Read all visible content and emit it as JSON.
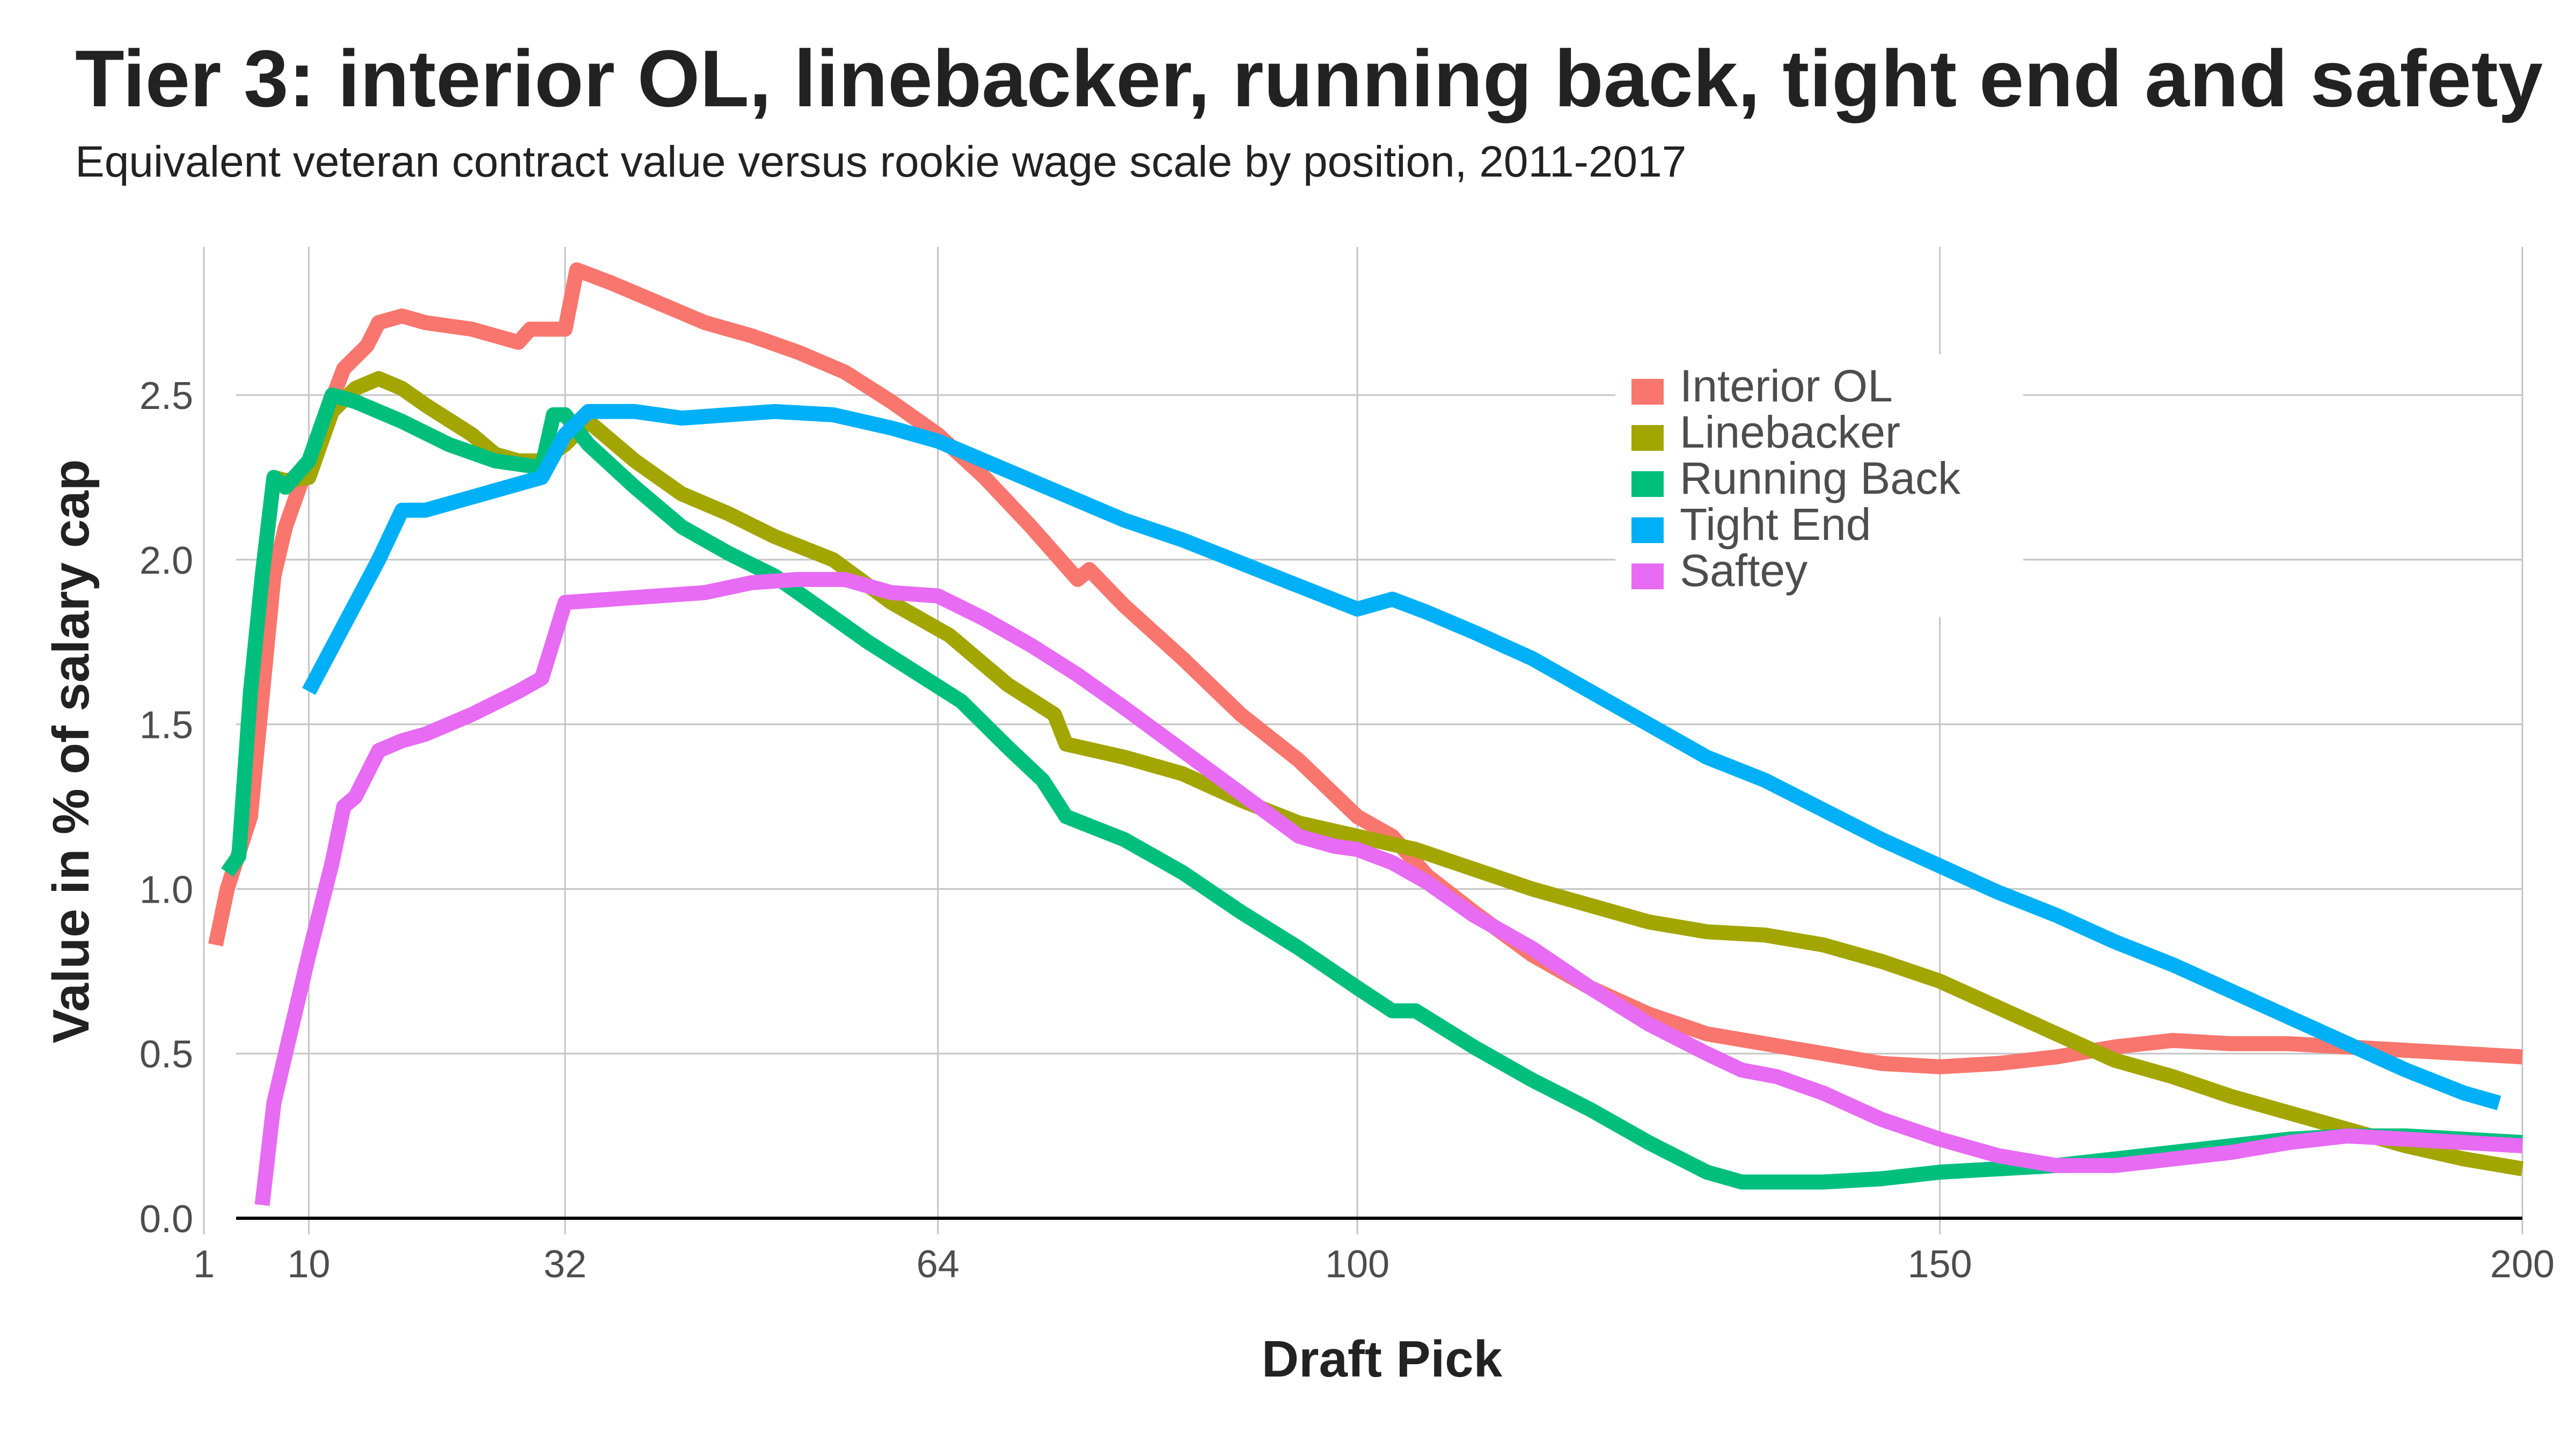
{
  "chart_data": {
    "type": "line",
    "title": "Tier 3: interior OL, linebacker, running back, tight end and safety",
    "subtitle": "Equivalent veteran contract value versus rookie wage scale by position, 2011-2017",
    "xlabel": "Draft Pick",
    "ylabel": "Value in % of salary cap",
    "xlim": [
      1,
      200
    ],
    "ylim": [
      0,
      2.95
    ],
    "x_ticks": [
      1,
      10,
      32,
      64,
      100,
      150,
      200
    ],
    "y_ticks": [
      0,
      0.5,
      1,
      1.5,
      2,
      2.5
    ],
    "y_tick_labels": [
      "0.0",
      "0.5",
      "1.0",
      "1.5",
      "2.0",
      "2.5"
    ],
    "grid": true,
    "legend_position": "top-right",
    "series": [
      {
        "name": "Interior OL",
        "color": "#F8766D",
        "points": [
          [
            2,
            0.83
          ],
          [
            3,
            1.0
          ],
          [
            5,
            1.22
          ],
          [
            7,
            1.95
          ],
          [
            8,
            2.1
          ],
          [
            10,
            2.3
          ],
          [
            13,
            2.58
          ],
          [
            15,
            2.65
          ],
          [
            16,
            2.72
          ],
          [
            18,
            2.74
          ],
          [
            20,
            2.72
          ],
          [
            22,
            2.71
          ],
          [
            24,
            2.7
          ],
          [
            26,
            2.68
          ],
          [
            28,
            2.66
          ],
          [
            29,
            2.7
          ],
          [
            31,
            2.7
          ],
          [
            32,
            2.7
          ],
          [
            33,
            2.88
          ],
          [
            36,
            2.84
          ],
          [
            40,
            2.78
          ],
          [
            44,
            2.72
          ],
          [
            48,
            2.68
          ],
          [
            52,
            2.63
          ],
          [
            56,
            2.57
          ],
          [
            60,
            2.48
          ],
          [
            64,
            2.38
          ],
          [
            68,
            2.25
          ],
          [
            72,
            2.1
          ],
          [
            75,
            1.98
          ],
          [
            76,
            1.94
          ],
          [
            77,
            1.97
          ],
          [
            80,
            1.86
          ],
          [
            85,
            1.7
          ],
          [
            90,
            1.53
          ],
          [
            95,
            1.39
          ],
          [
            100,
            1.22
          ],
          [
            103,
            1.16
          ],
          [
            106,
            1.04
          ],
          [
            110,
            0.93
          ],
          [
            115,
            0.8
          ],
          [
            120,
            0.7
          ],
          [
            125,
            0.62
          ],
          [
            130,
            0.56
          ],
          [
            135,
            0.53
          ],
          [
            140,
            0.5
          ],
          [
            145,
            0.47
          ],
          [
            150,
            0.46
          ],
          [
            155,
            0.47
          ],
          [
            160,
            0.49
          ],
          [
            165,
            0.52
          ],
          [
            170,
            0.54
          ],
          [
            175,
            0.53
          ],
          [
            180,
            0.53
          ],
          [
            185,
            0.52
          ],
          [
            190,
            0.51
          ],
          [
            195,
            0.5
          ],
          [
            200,
            0.49
          ]
        ]
      },
      {
        "name": "Linebacker",
        "color": "#A3A500",
        "points": [
          [
            7,
            2.25
          ],
          [
            8,
            2.24
          ],
          [
            10,
            2.25
          ],
          [
            12,
            2.45
          ],
          [
            14,
            2.52
          ],
          [
            16,
            2.55
          ],
          [
            18,
            2.52
          ],
          [
            20,
            2.47
          ],
          [
            24,
            2.38
          ],
          [
            26,
            2.32
          ],
          [
            28,
            2.3
          ],
          [
            30,
            2.3
          ],
          [
            32,
            2.35
          ],
          [
            34,
            2.42
          ],
          [
            38,
            2.3
          ],
          [
            42,
            2.2
          ],
          [
            46,
            2.14
          ],
          [
            50,
            2.07
          ],
          [
            55,
            2.0
          ],
          [
            60,
            1.87
          ],
          [
            65,
            1.77
          ],
          [
            70,
            1.62
          ],
          [
            74,
            1.53
          ],
          [
            75,
            1.44
          ],
          [
            80,
            1.4
          ],
          [
            85,
            1.35
          ],
          [
            90,
            1.27
          ],
          [
            95,
            1.2
          ],
          [
            100,
            1.16
          ],
          [
            105,
            1.12
          ],
          [
            110,
            1.06
          ],
          [
            115,
            1.0
          ],
          [
            120,
            0.95
          ],
          [
            125,
            0.9
          ],
          [
            130,
            0.87
          ],
          [
            135,
            0.86
          ],
          [
            140,
            0.83
          ],
          [
            145,
            0.78
          ],
          [
            150,
            0.72
          ],
          [
            155,
            0.64
          ],
          [
            160,
            0.56
          ],
          [
            165,
            0.48
          ],
          [
            170,
            0.43
          ],
          [
            175,
            0.37
          ],
          [
            180,
            0.32
          ],
          [
            185,
            0.27
          ],
          [
            190,
            0.22
          ],
          [
            195,
            0.18
          ],
          [
            200,
            0.15
          ]
        ]
      },
      {
        "name": "Running Back",
        "color": "#00BF7D",
        "points": [
          [
            3,
            1.05
          ],
          [
            4,
            1.1
          ],
          [
            5,
            1.6
          ],
          [
            6,
            1.95
          ],
          [
            7,
            2.25
          ],
          [
            8,
            2.22
          ],
          [
            10,
            2.3
          ],
          [
            12,
            2.5
          ],
          [
            14,
            2.48
          ],
          [
            18,
            2.42
          ],
          [
            22,
            2.35
          ],
          [
            26,
            2.3
          ],
          [
            30,
            2.28
          ],
          [
            31,
            2.44
          ],
          [
            32,
            2.44
          ],
          [
            34,
            2.35
          ],
          [
            38,
            2.22
          ],
          [
            42,
            2.1
          ],
          [
            46,
            2.02
          ],
          [
            50,
            1.95
          ],
          [
            54,
            1.85
          ],
          [
            58,
            1.75
          ],
          [
            62,
            1.66
          ],
          [
            66,
            1.57
          ],
          [
            70,
            1.43
          ],
          [
            73,
            1.33
          ],
          [
            75,
            1.22
          ],
          [
            80,
            1.15
          ],
          [
            85,
            1.05
          ],
          [
            90,
            0.93
          ],
          [
            95,
            0.82
          ],
          [
            100,
            0.7
          ],
          [
            103,
            0.63
          ],
          [
            105,
            0.63
          ],
          [
            110,
            0.52
          ],
          [
            115,
            0.42
          ],
          [
            120,
            0.33
          ],
          [
            125,
            0.23
          ],
          [
            130,
            0.14
          ],
          [
            133,
            0.11
          ],
          [
            136,
            0.11
          ],
          [
            140,
            0.11
          ],
          [
            145,
            0.12
          ],
          [
            150,
            0.14
          ],
          [
            155,
            0.15
          ],
          [
            160,
            0.16
          ],
          [
            165,
            0.18
          ],
          [
            170,
            0.2
          ],
          [
            175,
            0.22
          ],
          [
            180,
            0.24
          ],
          [
            185,
            0.25
          ],
          [
            190,
            0.25
          ],
          [
            195,
            0.24
          ],
          [
            200,
            0.23
          ]
        ]
      },
      {
        "name": "Tight End",
        "color": "#00B0F6",
        "points": [
          [
            10,
            1.6
          ],
          [
            13,
            1.8
          ],
          [
            16,
            2.0
          ],
          [
            18,
            2.15
          ],
          [
            20,
            2.15
          ],
          [
            24,
            2.19
          ],
          [
            28,
            2.23
          ],
          [
            30,
            2.25
          ],
          [
            32,
            2.38
          ],
          [
            34,
            2.45
          ],
          [
            38,
            2.45
          ],
          [
            42,
            2.43
          ],
          [
            46,
            2.44
          ],
          [
            50,
            2.45
          ],
          [
            55,
            2.44
          ],
          [
            60,
            2.4
          ],
          [
            64,
            2.36
          ],
          [
            68,
            2.3
          ],
          [
            72,
            2.24
          ],
          [
            76,
            2.18
          ],
          [
            80,
            2.12
          ],
          [
            85,
            2.06
          ],
          [
            90,
            1.99
          ],
          [
            95,
            1.92
          ],
          [
            100,
            1.85
          ],
          [
            103,
            1.88
          ],
          [
            106,
            1.84
          ],
          [
            110,
            1.78
          ],
          [
            115,
            1.7
          ],
          [
            120,
            1.6
          ],
          [
            125,
            1.5
          ],
          [
            130,
            1.4
          ],
          [
            135,
            1.33
          ],
          [
            140,
            1.24
          ],
          [
            145,
            1.15
          ],
          [
            150,
            1.07
          ],
          [
            155,
            0.99
          ],
          [
            160,
            0.92
          ],
          [
            165,
            0.84
          ],
          [
            170,
            0.77
          ],
          [
            175,
            0.69
          ],
          [
            180,
            0.61
          ],
          [
            185,
            0.53
          ],
          [
            190,
            0.45
          ],
          [
            195,
            0.38
          ],
          [
            198,
            0.35
          ]
        ]
      },
      {
        "name": "Saftey",
        "color": "#E76BF3",
        "points": [
          [
            6,
            0.04
          ],
          [
            7,
            0.35
          ],
          [
            8,
            0.5
          ],
          [
            10,
            0.8
          ],
          [
            12,
            1.08
          ],
          [
            13,
            1.25
          ],
          [
            14,
            1.28
          ],
          [
            16,
            1.42
          ],
          [
            18,
            1.45
          ],
          [
            20,
            1.47
          ],
          [
            24,
            1.53
          ],
          [
            28,
            1.6
          ],
          [
            30,
            1.64
          ],
          [
            32,
            1.87
          ],
          [
            36,
            1.88
          ],
          [
            40,
            1.89
          ],
          [
            44,
            1.9
          ],
          [
            48,
            1.93
          ],
          [
            52,
            1.94
          ],
          [
            56,
            1.94
          ],
          [
            60,
            1.9
          ],
          [
            64,
            1.89
          ],
          [
            68,
            1.82
          ],
          [
            72,
            1.74
          ],
          [
            76,
            1.65
          ],
          [
            80,
            1.55
          ],
          [
            85,
            1.42
          ],
          [
            90,
            1.29
          ],
          [
            95,
            1.16
          ],
          [
            98,
            1.13
          ],
          [
            100,
            1.12
          ],
          [
            103,
            1.08
          ],
          [
            106,
            1.02
          ],
          [
            110,
            0.92
          ],
          [
            115,
            0.82
          ],
          [
            120,
            0.7
          ],
          [
            125,
            0.59
          ],
          [
            130,
            0.5
          ],
          [
            133,
            0.45
          ],
          [
            136,
            0.43
          ],
          [
            140,
            0.38
          ],
          [
            145,
            0.3
          ],
          [
            150,
            0.24
          ],
          [
            155,
            0.19
          ],
          [
            160,
            0.16
          ],
          [
            165,
            0.16
          ],
          [
            170,
            0.18
          ],
          [
            175,
            0.2
          ],
          [
            180,
            0.23
          ],
          [
            185,
            0.25
          ],
          [
            190,
            0.24
          ],
          [
            195,
            0.23
          ],
          [
            200,
            0.22
          ]
        ]
      }
    ]
  }
}
